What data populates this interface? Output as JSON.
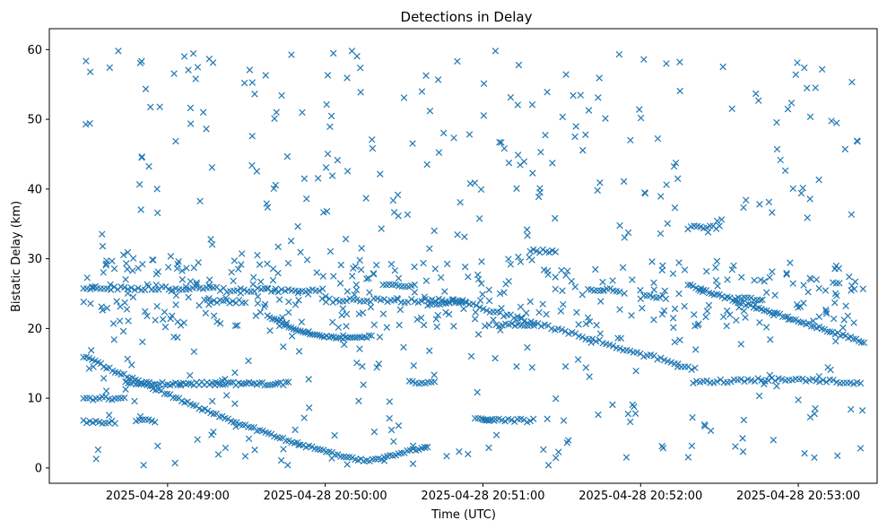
{
  "chart_data": {
    "type": "scatter",
    "title": "Detections in Delay",
    "xlabel": "Time (UTC)",
    "ylabel": "Bistatic Delay (km)",
    "marker": "x",
    "color": "#1f77b4",
    "grid": false,
    "x_range": [
      "2025-04-28 20:48:15",
      "2025-04-28 20:53:30"
    ],
    "ylim": [
      -2.2,
      63.0
    ],
    "x_ticks": [
      "2025-04-28 20:49:00",
      "2025-04-28 20:50:00",
      "2025-04-28 20:51:00",
      "2025-04-28 20:52:00",
      "2025-04-28 20:53:00"
    ],
    "y_ticks": [
      0,
      10,
      20,
      30,
      40,
      50,
      60
    ],
    "series": [
      {
        "x_start": "2025-04-28 20:48:28",
        "x_end": "2025-04-28 20:53:25",
        "generated": true,
        "description_of_tracks": [
          "descending track from 16 km at 20:48:28 to 1 km near 20:50:17, rising to 3 km at 20:50:40",
          "track near 26 km early, becoming 24 km by 20:50:50, descending to 14 km around 20:52:20",
          "track from 22 km at 20:49:40 dipping to 18.5 km near 20:50:10 and back to 20.5 km by 20:50:18",
          "steady track near 12 km from 20:48:45 to 20:49:45",
          "track from 26 km at 20:52:20 descending to 18 km at 20:53:25",
          "track near 12-13 km from 20:52:20 to 20:53:25",
          "uniform background clutter between 0 and 60 km"
        ]
      }
    ]
  }
}
